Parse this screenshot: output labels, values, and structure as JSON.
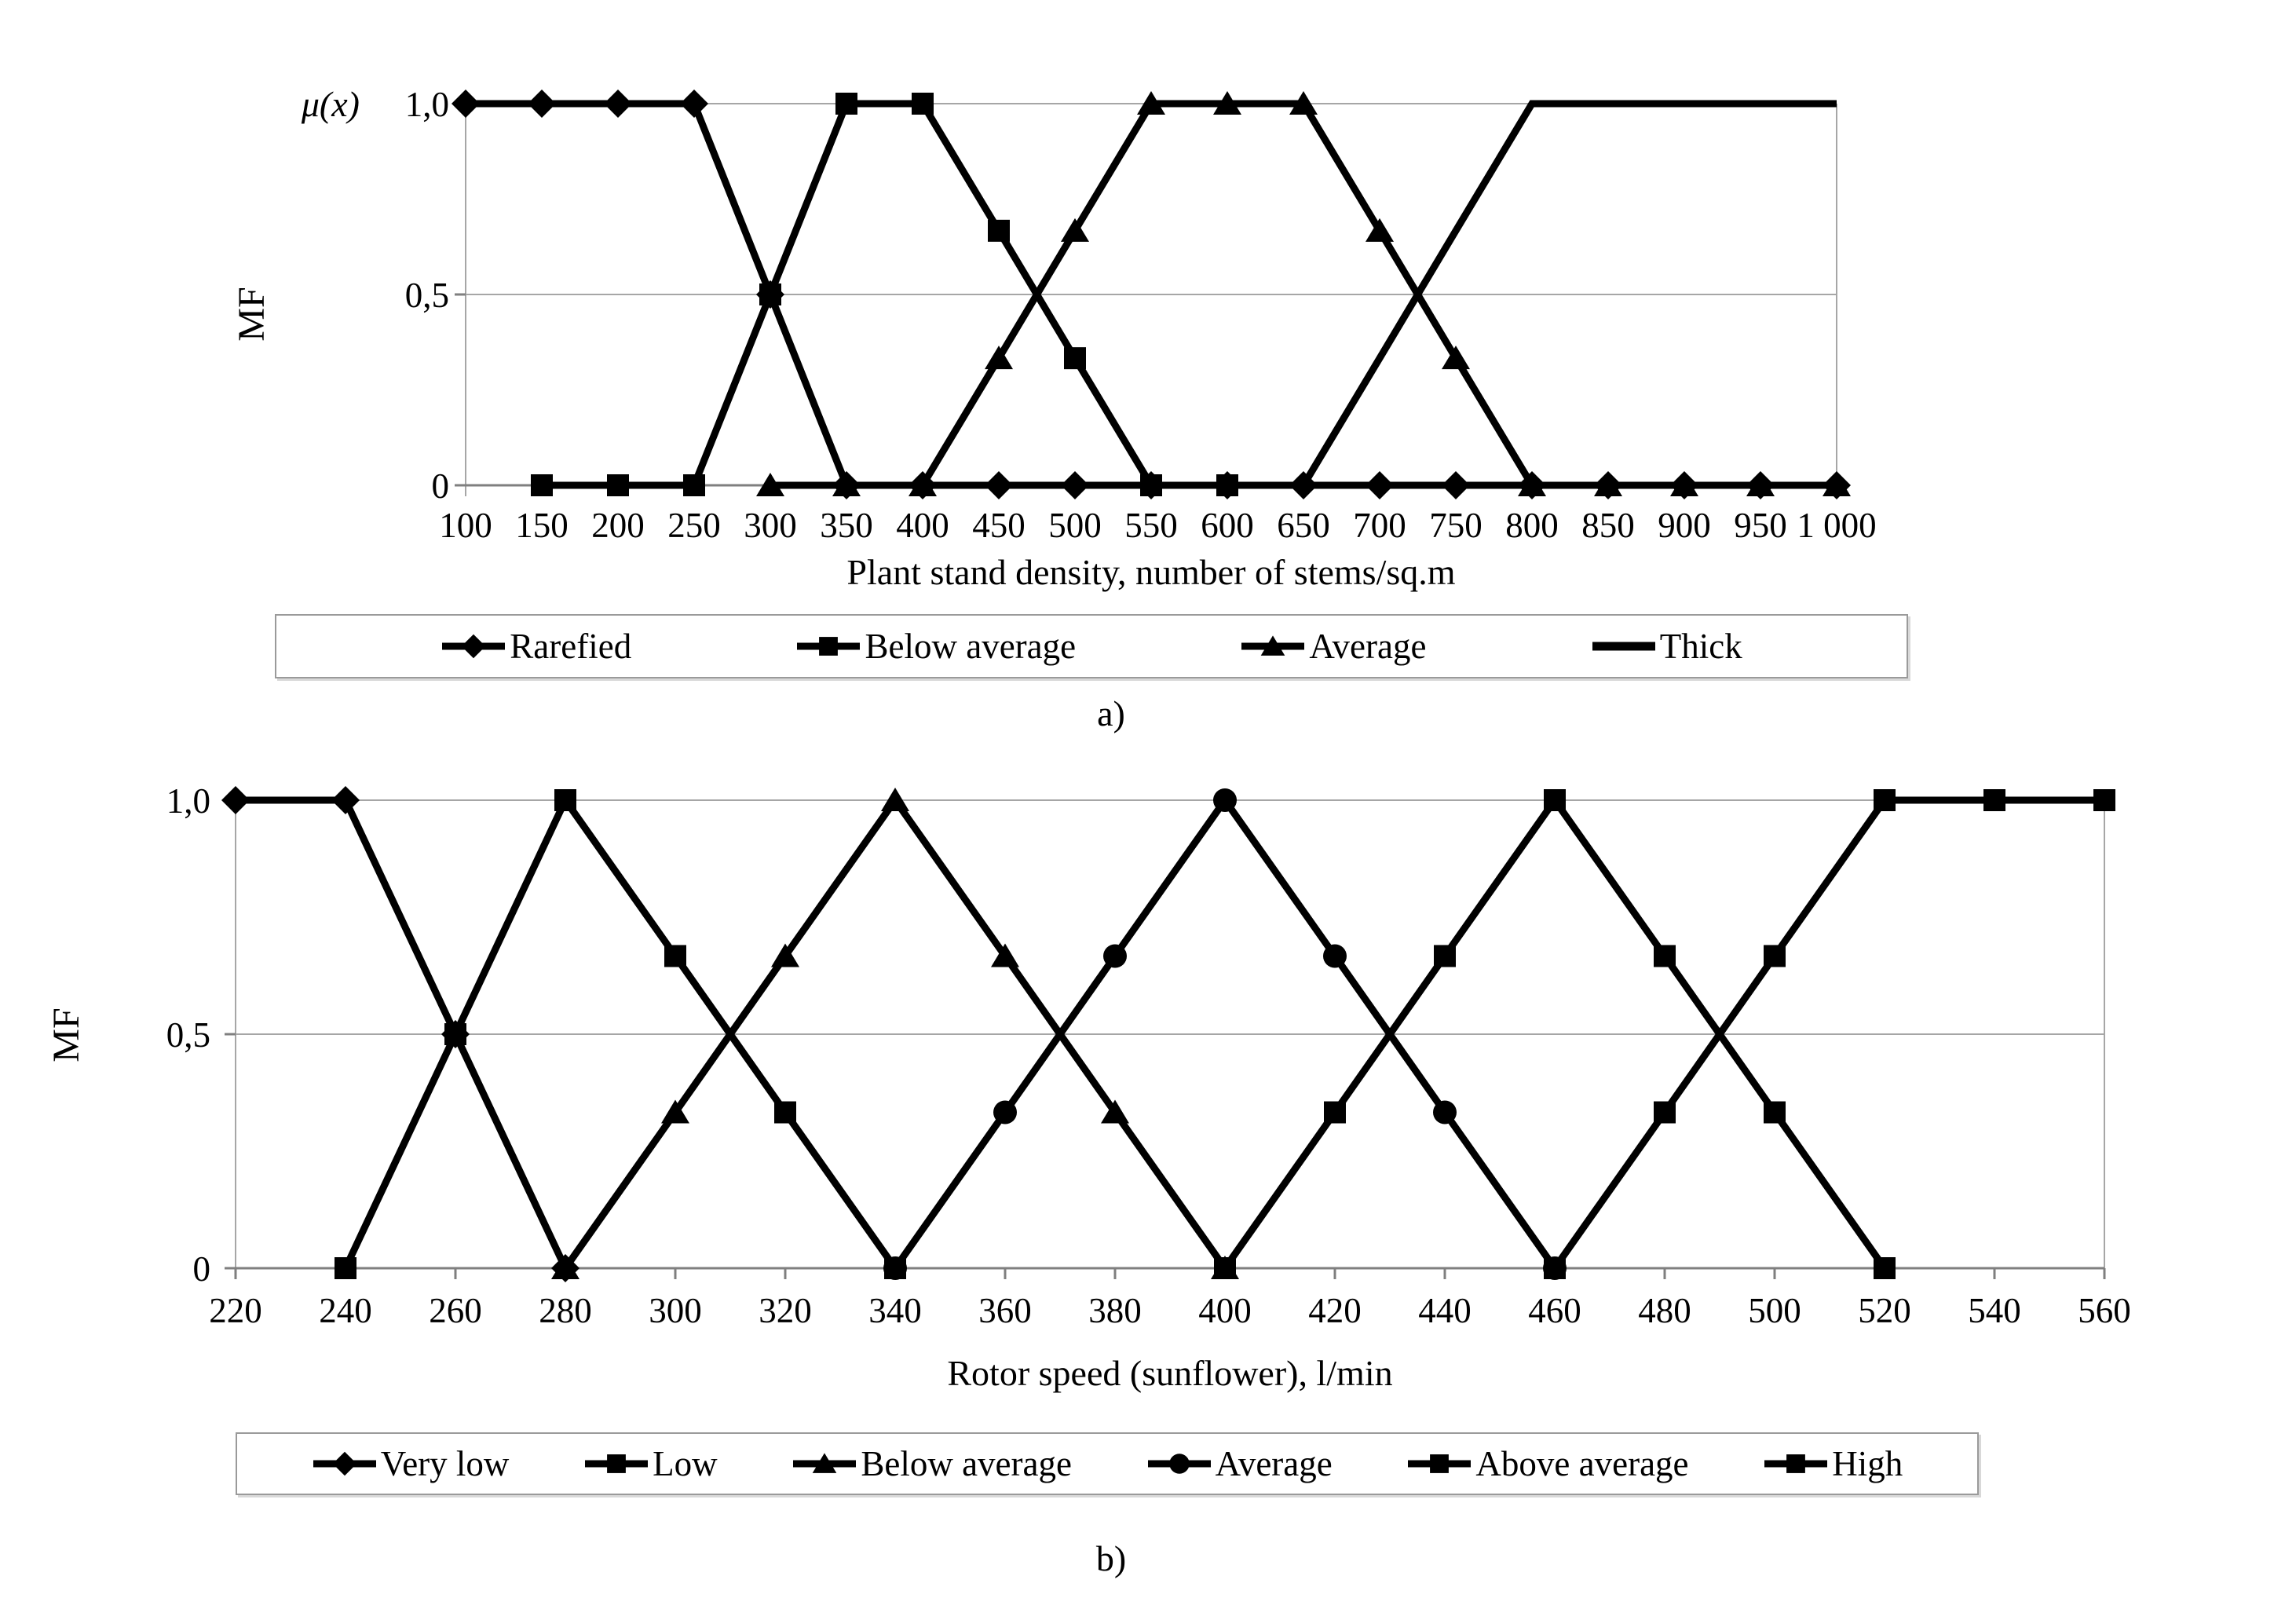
{
  "figure": {
    "captions": {
      "a": "a)",
      "b": "b)"
    }
  },
  "colors": {
    "series": "#000000",
    "grid": "#a6a6a6",
    "axis": "#7f7f7f",
    "text": "#000000",
    "legend_border": "#9a9a9a",
    "background": "#ffffff"
  },
  "chart_data": [
    {
      "id": "a",
      "type": "line",
      "title": "",
      "xlabel": "Plant stand density, number of stems/sq.m",
      "ylabel": "MF",
      "y_axis_top_label": "μ(x)",
      "xlim": [
        100,
        1000
      ],
      "ylim": [
        0,
        1
      ],
      "x_ticks": [
        100,
        150,
        200,
        250,
        300,
        350,
        400,
        450,
        500,
        550,
        600,
        650,
        700,
        750,
        800,
        850,
        900,
        950,
        1000
      ],
      "x_tick_labels": [
        "100",
        "150",
        "200",
        "250",
        "300",
        "350",
        "400",
        "450",
        "500",
        "550",
        "600",
        "650",
        "700",
        "750",
        "800",
        "850",
        "900",
        "950",
        "1 000"
      ],
      "y_ticks": [
        0,
        0.5,
        1
      ],
      "y_tick_labels": [
        "0",
        "0,5",
        "1,0"
      ],
      "grid": "horizontal",
      "legend_position": "bottom",
      "caption": "a)",
      "series": [
        {
          "name": "Rarefied",
          "marker": "diamond",
          "z": 1,
          "points": [
            [
              100,
              1
            ],
            [
              150,
              1
            ],
            [
              200,
              1
            ],
            [
              250,
              1
            ],
            [
              300,
              0.5
            ],
            [
              350,
              0
            ],
            [
              400,
              0
            ],
            [
              450,
              0
            ],
            [
              500,
              0
            ],
            [
              550,
              0
            ],
            [
              600,
              0
            ],
            [
              650,
              0
            ],
            [
              700,
              0
            ],
            [
              750,
              0
            ],
            [
              800,
              0
            ],
            [
              850,
              0
            ],
            [
              900,
              0
            ],
            [
              950,
              0
            ],
            [
              1000,
              0
            ]
          ]
        },
        {
          "name": "Below average",
          "marker": "square",
          "z": 2,
          "points": [
            [
              150,
              0
            ],
            [
              200,
              0
            ],
            [
              250,
              0
            ],
            [
              300,
              0.5
            ],
            [
              350,
              1
            ],
            [
              400,
              1
            ],
            [
              450,
              0.667
            ],
            [
              500,
              0.333
            ],
            [
              550,
              0
            ],
            [
              600,
              0
            ]
          ]
        },
        {
          "name": "Average",
          "marker": "triangle",
          "z": 3,
          "points": [
            [
              300,
              0
            ],
            [
              350,
              0
            ],
            [
              400,
              0
            ],
            [
              450,
              0.333
            ],
            [
              500,
              0.667
            ],
            [
              550,
              1
            ],
            [
              600,
              1
            ],
            [
              650,
              1
            ],
            [
              700,
              0.667
            ],
            [
              750,
              0.333
            ],
            [
              800,
              0
            ],
            [
              850,
              0
            ],
            [
              900,
              0
            ],
            [
              950,
              0
            ],
            [
              1000,
              0
            ]
          ]
        },
        {
          "name": "Thick",
          "marker": "none",
          "z": 4,
          "points": [
            [
              650,
              0
            ],
            [
              700,
              0.333
            ],
            [
              750,
              0.667
            ],
            [
              800,
              1
            ],
            [
              850,
              1
            ],
            [
              900,
              1
            ],
            [
              950,
              1
            ],
            [
              1000,
              1
            ]
          ]
        }
      ]
    },
    {
      "id": "b",
      "type": "line",
      "title": "",
      "xlabel": "Rotor speed (sunflower), l/min",
      "ylabel": "MF",
      "y_axis_top_label": "",
      "xlim": [
        220,
        560
      ],
      "ylim": [
        0,
        1
      ],
      "x_ticks": [
        220,
        240,
        260,
        280,
        300,
        320,
        340,
        360,
        380,
        400,
        420,
        440,
        460,
        480,
        500,
        520,
        540,
        560
      ],
      "x_tick_labels": [
        "220",
        "240",
        "260",
        "280",
        "300",
        "320",
        "340",
        "360",
        "380",
        "400",
        "420",
        "440",
        "460",
        "480",
        "500",
        "520",
        "540",
        "560"
      ],
      "y_ticks": [
        0,
        0.5,
        1
      ],
      "y_tick_labels": [
        "0",
        "0,5",
        "1,0"
      ],
      "grid": "horizontal",
      "legend_position": "bottom",
      "caption": "b)",
      "series": [
        {
          "name": "Very low",
          "marker": "diamond",
          "z": 1,
          "points": [
            [
              220,
              1
            ],
            [
              240,
              1
            ],
            [
              260,
              0.5
            ],
            [
              280,
              0
            ]
          ]
        },
        {
          "name": "Low",
          "marker": "square",
          "z": 2,
          "points": [
            [
              240,
              0
            ],
            [
              260,
              0.5
            ],
            [
              280,
              1
            ],
            [
              300,
              0.667
            ],
            [
              320,
              0.333
            ],
            [
              340,
              0
            ]
          ]
        },
        {
          "name": "Below average",
          "marker": "triangle",
          "z": 3,
          "points": [
            [
              280,
              0
            ],
            [
              300,
              0.333
            ],
            [
              320,
              0.667
            ],
            [
              340,
              1
            ],
            [
              360,
              0.667
            ],
            [
              380,
              0.333
            ],
            [
              400,
              0
            ]
          ]
        },
        {
          "name": "Average",
          "marker": "circle",
          "z": 6,
          "points": [
            [
              340,
              0
            ],
            [
              360,
              0.333
            ],
            [
              380,
              0.667
            ],
            [
              400,
              1
            ],
            [
              420,
              0.667
            ],
            [
              440,
              0.333
            ],
            [
              460,
              0
            ]
          ]
        },
        {
          "name": "Above average",
          "marker": "square",
          "z": 4,
          "points": [
            [
              400,
              0
            ],
            [
              420,
              0.333
            ],
            [
              440,
              0.667
            ],
            [
              460,
              1
            ],
            [
              480,
              0.667
            ],
            [
              500,
              0.333
            ],
            [
              520,
              0
            ]
          ]
        },
        {
          "name": "High",
          "marker": "square",
          "z": 5,
          "points": [
            [
              460,
              0
            ],
            [
              480,
              0.333
            ],
            [
              500,
              0.667
            ],
            [
              520,
              1
            ],
            [
              540,
              1
            ],
            [
              560,
              1
            ]
          ]
        }
      ]
    }
  ]
}
